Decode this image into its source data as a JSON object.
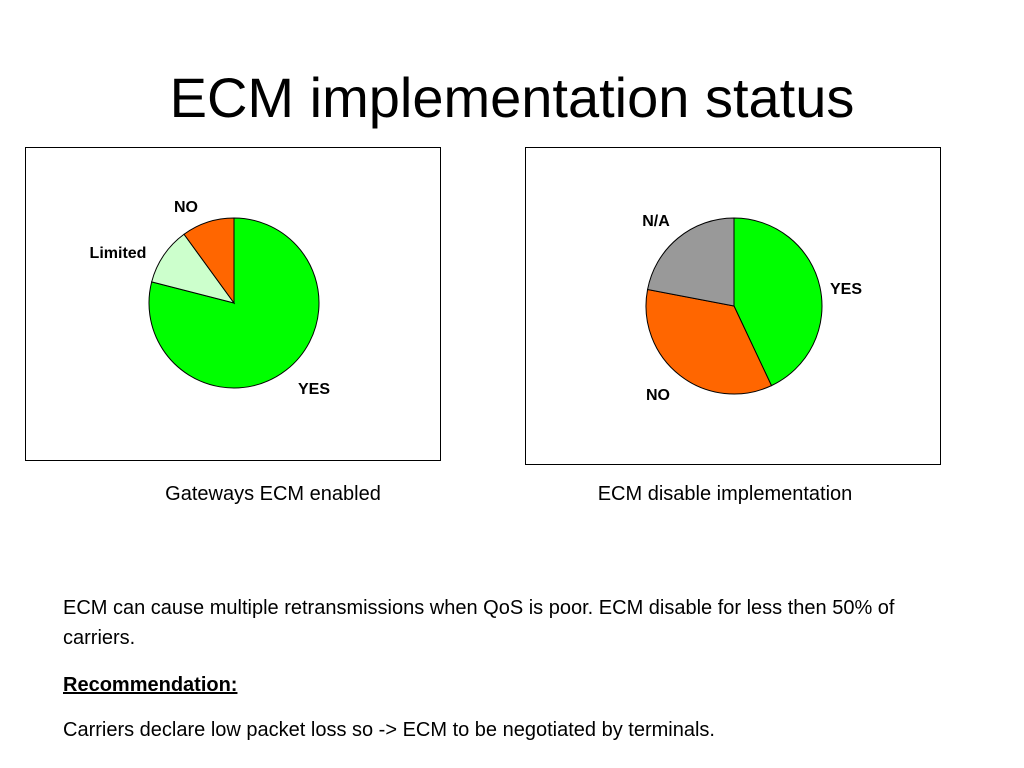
{
  "slide": {
    "title": "ECM implementation status",
    "note": "ECM can cause multiple retransmissions when QoS is poor. ECM disable for less then 50% of carriers.",
    "recommendation_heading": "Recommendation:",
    "recommendation_text": "Carriers declare low packet loss so -> ECM to be negotiated by terminals."
  },
  "captions": {
    "left": "Gateways ECM enabled",
    "right": "ECM disable implementation"
  },
  "chart_data": [
    {
      "type": "pie",
      "title": "",
      "categories": [
        "YES",
        "Limited",
        "NO"
      ],
      "values": [
        79,
        11,
        10
      ],
      "colors": [
        "#00FF00",
        "#CCFFCC",
        "#FF6600"
      ],
      "legend": "none",
      "labels": "outside"
    },
    {
      "type": "pie",
      "title": "",
      "categories": [
        "YES",
        "NO",
        "N/A"
      ],
      "values": [
        43,
        35,
        22
      ],
      "colors": [
        "#00FF00",
        "#FF6600",
        "#999999"
      ],
      "legend": "none",
      "labels": "outside"
    }
  ]
}
